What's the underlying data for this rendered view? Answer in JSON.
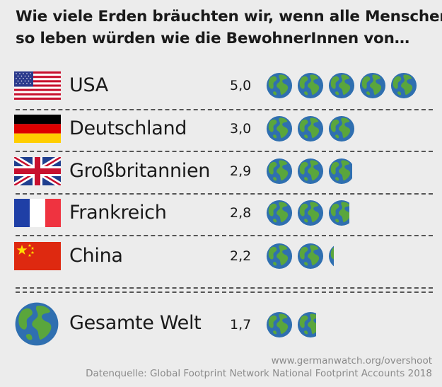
{
  "title_line1": "Wie viele Erden bräuchten wir, wenn alle Menschen",
  "title_line2": "so leben würden wie die BewohnerInnen von…",
  "colors": {
    "ocean": "#2f6fb0",
    "land": "#5aa63c",
    "background": "#ececec",
    "divider": "#555555"
  },
  "chart_data": {
    "type": "bar",
    "title": "Wie viele Erden bräuchten wir, wenn alle Menschen so leben würden wie die BewohnerInnen von…",
    "categories": [
      "USA",
      "Deutschland",
      "Großbritannien",
      "Frankreich",
      "China",
      "Gesamte Welt"
    ],
    "values": [
      5.0,
      3.0,
      2.9,
      2.8,
      2.2,
      1.7
    ],
    "value_labels": [
      "5,0",
      "3,0",
      "2,9",
      "2,8",
      "2,2",
      "1,7"
    ],
    "unit": "Erden",
    "xlabel": "",
    "ylabel": "",
    "legend": "none"
  },
  "rows": [
    {
      "country": "USA",
      "value": "5,0",
      "flag": "usa-flag-icon"
    },
    {
      "country": "Deutschland",
      "value": "3,0",
      "flag": "germany-flag-icon"
    },
    {
      "country": "Großbritannien",
      "value": "2,9",
      "flag": "uk-flag-icon"
    },
    {
      "country": "Frankreich",
      "value": "2,8",
      "flag": "france-flag-icon"
    },
    {
      "country": "China",
      "value": "2,2",
      "flag": "china-flag-icon"
    }
  ],
  "world": {
    "label": "Gesamte Welt",
    "value": "1,7",
    "icon": "earth-globe-icon"
  },
  "footer": {
    "url": "www.germanwatch.org/overshoot",
    "source": "Datenquelle: Global Footprint Network National Footprint Accounts 2018"
  }
}
